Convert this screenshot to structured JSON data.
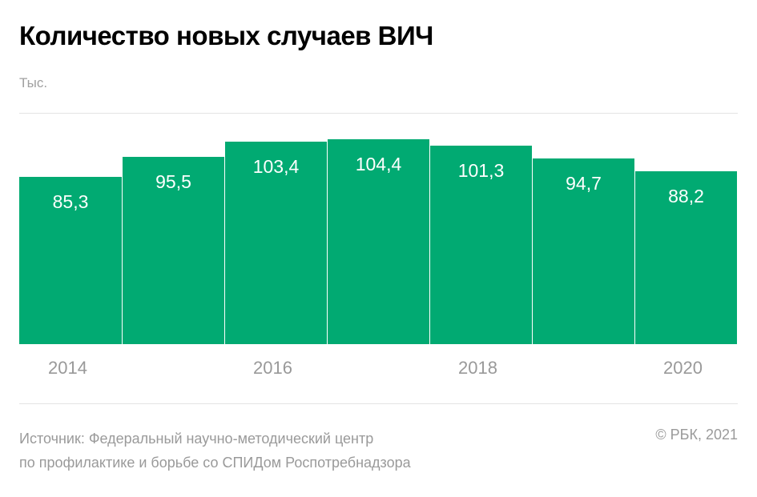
{
  "header": {
    "title": "Количество новых случаев ВИЧ",
    "unit": "Тыс."
  },
  "colors": {
    "bar": "#01aa72",
    "axis_text": "#999999"
  },
  "footer": {
    "source_line1": "Источник: Федеральный научно-методический центр",
    "source_line2": "по профилактике и борьбе со СПИДом Роспотребнадзора",
    "copyright": "© РБК, 2021"
  },
  "axis": {
    "ticks": [
      "2014",
      "2016",
      "2018",
      "2020"
    ]
  },
  "chart_data": {
    "type": "bar",
    "title": "Количество новых случаев ВИЧ",
    "ylabel": "Тыс.",
    "xlabel": "",
    "categories": [
      "2014",
      "2015",
      "2016",
      "2017",
      "2018",
      "2019",
      "2020"
    ],
    "values": [
      85.3,
      95.5,
      103.4,
      104.4,
      101.3,
      94.7,
      88.2
    ],
    "labels": [
      "85,3",
      "95,5",
      "103,4",
      "104,4",
      "101,3",
      "94,7",
      "88,2"
    ],
    "x_tick_labels": [
      "2014",
      "2016",
      "2018",
      "2020"
    ],
    "grid": false,
    "legend": null
  }
}
